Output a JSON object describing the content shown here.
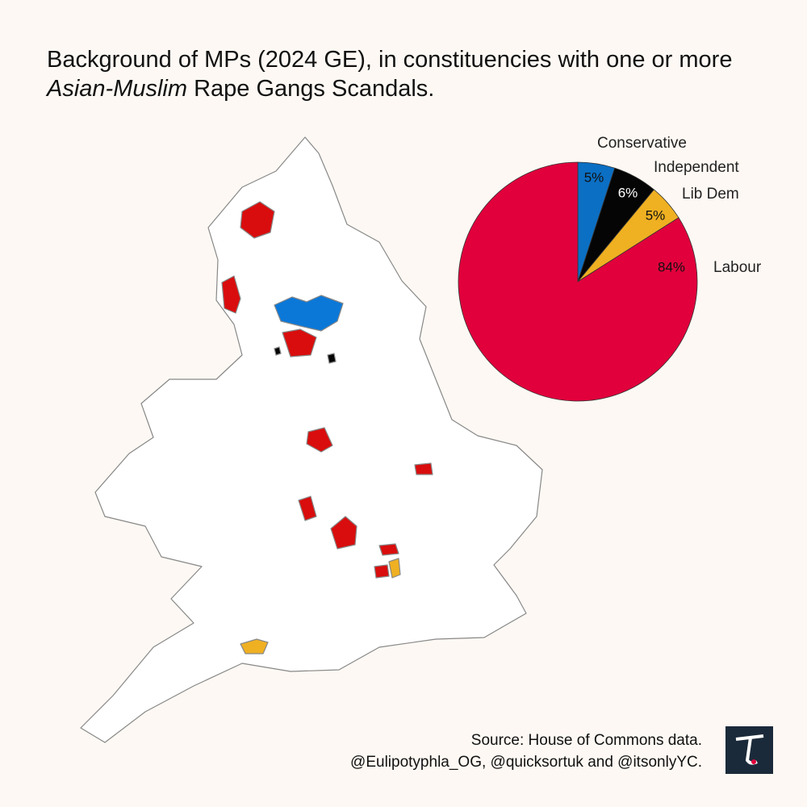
{
  "title": [
    "Background of MPs (2024 GE), in constituencies with one or more ",
    "Asian-Muslim",
    " Rape Gangs Scandals."
  ],
  "chart_data": {
    "type": "pie",
    "categories": [
      "Conservative",
      "Independent",
      "Lib Dem",
      "Labour"
    ],
    "values": [
      5,
      6,
      5,
      84
    ],
    "value_labels": [
      "5%",
      "6%",
      "5%",
      "84%"
    ],
    "colors": [
      "#0b6fc4",
      "#050505",
      "#efb022",
      "#e1003c"
    ]
  },
  "source": [
    "Source: House of Commons data.",
    "@Eulipotyphla_OG, @quicksortuk and @itsonlyYC."
  ]
}
